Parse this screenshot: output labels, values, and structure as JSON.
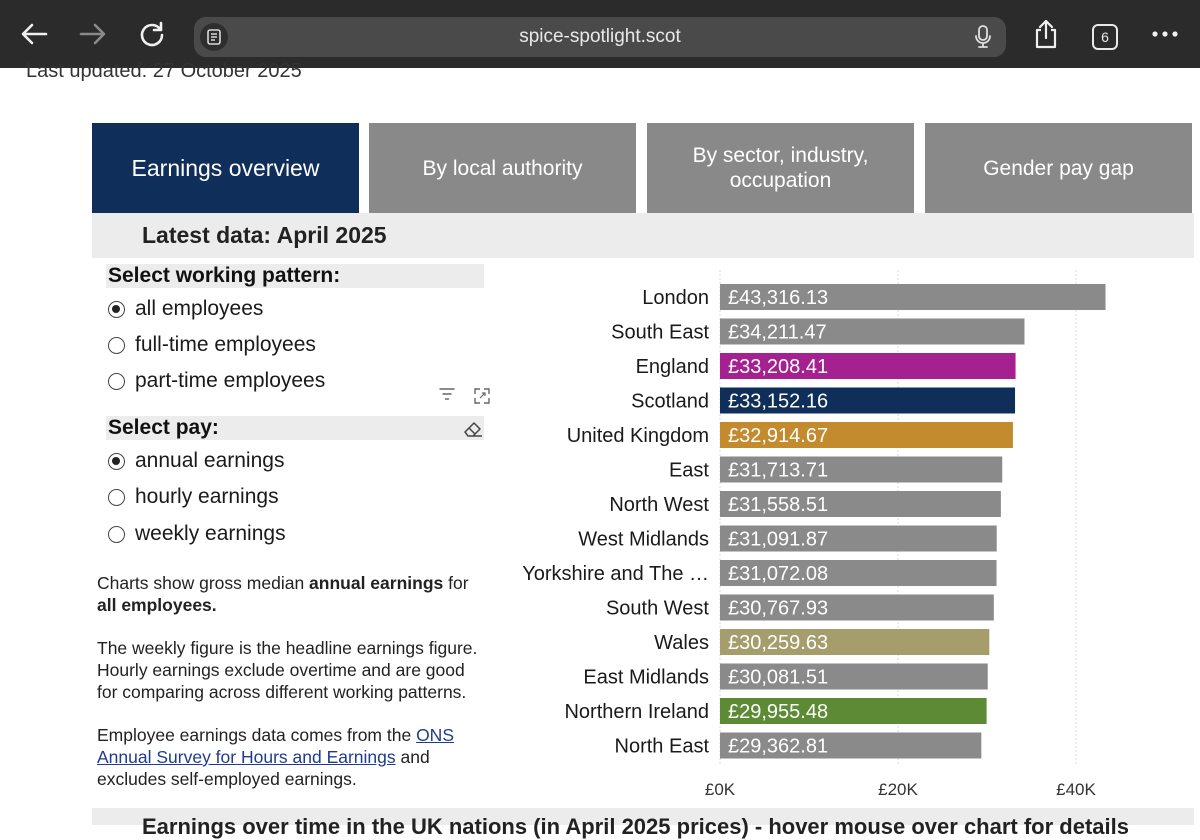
{
  "browser": {
    "url": "spice-spotlight.scot",
    "tab_count": "6"
  },
  "page": {
    "last_updated": "Last updated: 27 October 2025",
    "tabs": [
      {
        "label": "Earnings overview",
        "active": true
      },
      {
        "label": "By local authority",
        "active": false
      },
      {
        "label": "By sector, industry, occupation",
        "active": false
      },
      {
        "label": "Gender pay gap",
        "active": false
      }
    ],
    "latest_data": "Latest data: April 2025",
    "working_pattern": {
      "label": "Select working pattern:",
      "options": [
        {
          "label": "all employees",
          "selected": true
        },
        {
          "label": "full-time employees",
          "selected": false
        },
        {
          "label": "part-time employees",
          "selected": false
        }
      ]
    },
    "pay": {
      "label": "Select pay:",
      "options": [
        {
          "label": "annual earnings",
          "selected": true
        },
        {
          "label": "hourly earnings",
          "selected": false
        },
        {
          "label": "weekly earnings",
          "selected": false
        }
      ]
    },
    "description": {
      "p1_a": "Charts show gross median ",
      "p1_b": "annual earnings",
      "p1_c": " for ",
      "p1_d": "all employees.",
      "p2": "The weekly figure is the headline earnings figure. Hourly earnings exclude overtime and are good for comparing across different working patterns.",
      "p3_a": "Employee earnings data comes from the ",
      "p3_link": "ONS Annual Survey for Hours and Earnings",
      "p3_b": " and excludes self-employed earnings."
    },
    "next_section_title": "Earnings over time in the UK nations (in April 2025 prices) - hover mouse over chart for details"
  },
  "chart_data": {
    "type": "bar",
    "orientation": "horizontal",
    "categories": [
      "London",
      "South East",
      "England",
      "Scotland",
      "United Kingdom",
      "East",
      "North West",
      "West Midlands",
      "Yorkshire and The …",
      "South West",
      "Wales",
      "East Midlands",
      "Northern Ireland",
      "North East"
    ],
    "values": [
      43316.13,
      34211.47,
      33208.41,
      33152.16,
      32914.67,
      31713.71,
      31558.51,
      31091.87,
      31072.08,
      30767.93,
      30259.63,
      30081.51,
      29955.48,
      29362.81
    ],
    "data_labels": [
      "£43,316.13",
      "£34,211.47",
      "£33,208.41",
      "£33,152.16",
      "£32,914.67",
      "£31,713.71",
      "£31,558.51",
      "£31,091.87",
      "£31,072.08",
      "£30,767.93",
      "£30,259.63",
      "£30,081.51",
      "£29,955.48",
      "£29,362.81"
    ],
    "colors": [
      "#8a8a8a",
      "#8a8a8a",
      "#a4218f",
      "#0f2e59",
      "#c48a2e",
      "#8a8a8a",
      "#8a8a8a",
      "#8a8a8a",
      "#8a8a8a",
      "#8a8a8a",
      "#a59e6c",
      "#8a8a8a",
      "#5d8a34",
      "#8a8a8a"
    ],
    "x_ticks": [
      0,
      20000,
      40000
    ],
    "x_tick_labels": [
      "£0K",
      "£20K",
      "£40K"
    ],
    "xlim": [
      0,
      45000
    ],
    "grid": true
  }
}
